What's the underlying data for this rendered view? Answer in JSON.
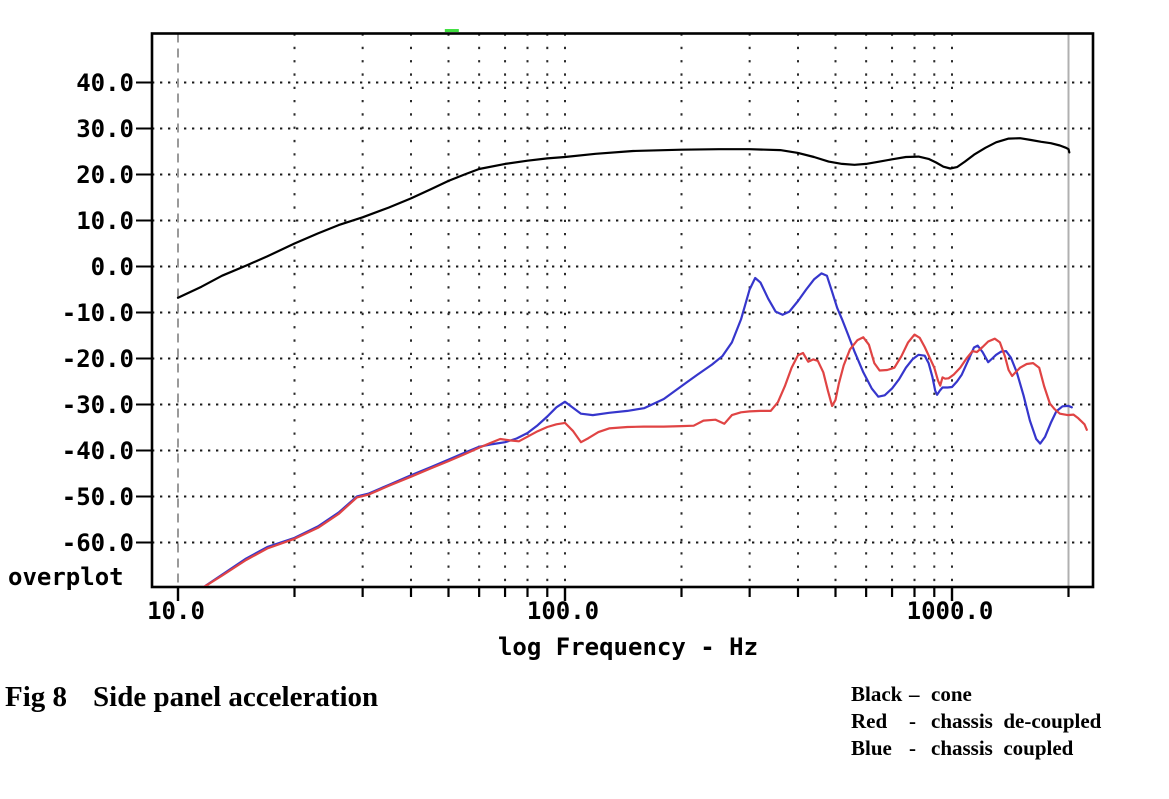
{
  "figure": {
    "fig_label": "Fig 8",
    "caption": "Side panel acceleration"
  },
  "legend": [
    {
      "color_name": "Black",
      "separator": "–",
      "description": "cone",
      "color": "#000000"
    },
    {
      "color_name": "Red",
      "separator": "-",
      "description": "chassis  de-coupled",
      "color": "#e04444"
    },
    {
      "color_name": "Blue",
      "separator": "-",
      "description": "chassis  coupled",
      "color": "#3636cc"
    }
  ],
  "chart_data": {
    "type": "line",
    "title": "",
    "xlabel": "log Frequency - Hz",
    "ylabel": "",
    "x_scale": "log",
    "xlim": [
      8.6,
      2320
    ],
    "ylim": [
      -70,
      50.8
    ],
    "corner_label": "overplot",
    "grid": "dotted",
    "y_ticks": [
      {
        "label": "40.0",
        "value": 40
      },
      {
        "label": "30.0",
        "value": 30
      },
      {
        "label": "20.0",
        "value": 20
      },
      {
        "label": "10.0",
        "value": 10
      },
      {
        "label": "0.0",
        "value": 0
      },
      {
        "label": "-10.0",
        "value": -10
      },
      {
        "label": "-20.0",
        "value": -20
      },
      {
        "label": "-30.0",
        "value": -30
      },
      {
        "label": "-40.0",
        "value": -40
      },
      {
        "label": "-50.0",
        "value": -50
      },
      {
        "label": "-60.0",
        "value": -60
      }
    ],
    "x_major_ticks": [
      {
        "label": "10.0",
        "value": 10
      },
      {
        "label": "100.0",
        "value": 100
      },
      {
        "label": "1000.0",
        "value": 1000
      }
    ],
    "x_minor_ticks": [
      20,
      30,
      40,
      50,
      60,
      70,
      80,
      90,
      200,
      300,
      400,
      500,
      600,
      700,
      800,
      900,
      2000
    ],
    "x_gridlines": [
      20,
      30,
      40,
      50,
      60,
      70,
      80,
      90,
      100,
      200,
      300,
      400,
      500,
      600,
      700,
      800,
      900,
      1000
    ],
    "reference_lines": [
      {
        "style": "dashed",
        "freq": 10,
        "color": "#9a9a9a"
      },
      {
        "style": "solid",
        "freq": 2000,
        "color": "#b0b0b0"
      }
    ],
    "cursor_marker": {
      "freq": 51,
      "db": 51.3,
      "color": "#3fdf3f"
    },
    "series": [
      {
        "name": "chassis coupled",
        "color": "#3636cc",
        "points": [
          [
            11.5,
            -70
          ],
          [
            13,
            -67
          ],
          [
            15,
            -63.5
          ],
          [
            17,
            -61
          ],
          [
            20,
            -59
          ],
          [
            23,
            -56.5
          ],
          [
            26,
            -53.5
          ],
          [
            29,
            -50
          ],
          [
            31,
            -49.4
          ],
          [
            35,
            -47.5
          ],
          [
            40,
            -45.4
          ],
          [
            45,
            -43.6
          ],
          [
            50,
            -42
          ],
          [
            55,
            -40.5
          ],
          [
            60,
            -39.2
          ],
          [
            65,
            -38.6
          ],
          [
            70,
            -38.2
          ],
          [
            75,
            -37.4
          ],
          [
            80,
            -36.2
          ],
          [
            85,
            -34.5
          ],
          [
            90,
            -32.6
          ],
          [
            95,
            -30.6
          ],
          [
            100,
            -29.4
          ],
          [
            104,
            -30.5
          ],
          [
            110,
            -32
          ],
          [
            118,
            -32.3
          ],
          [
            130,
            -31.8
          ],
          [
            145,
            -31.4
          ],
          [
            160,
            -30.8
          ],
          [
            180,
            -28.8
          ],
          [
            200,
            -26
          ],
          [
            220,
            -23.5
          ],
          [
            240,
            -21.3
          ],
          [
            255,
            -19.5
          ],
          [
            270,
            -16.5
          ],
          [
            285,
            -11.5
          ],
          [
            300,
            -5
          ],
          [
            310,
            -2.5
          ],
          [
            320,
            -3.5
          ],
          [
            335,
            -7
          ],
          [
            350,
            -9.8
          ],
          [
            365,
            -10.5
          ],
          [
            380,
            -9.8
          ],
          [
            400,
            -7.5
          ],
          [
            420,
            -5
          ],
          [
            440,
            -2.8
          ],
          [
            460,
            -1.5
          ],
          [
            475,
            -2
          ],
          [
            490,
            -5.5
          ],
          [
            505,
            -9
          ],
          [
            520,
            -11.5
          ],
          [
            540,
            -15
          ],
          [
            560,
            -18.5
          ],
          [
            590,
            -23
          ],
          [
            620,
            -26.5
          ],
          [
            645,
            -28.3
          ],
          [
            670,
            -28
          ],
          [
            700,
            -26.5
          ],
          [
            730,
            -24.5
          ],
          [
            760,
            -22
          ],
          [
            790,
            -20.2
          ],
          [
            820,
            -19.2
          ],
          [
            850,
            -19.4
          ],
          [
            870,
            -21
          ],
          [
            890,
            -24
          ],
          [
            905,
            -27
          ],
          [
            915,
            -27.9
          ],
          [
            930,
            -27
          ],
          [
            945,
            -26.3
          ],
          [
            975,
            -26.3
          ],
          [
            1000,
            -26.2
          ],
          [
            1030,
            -25
          ],
          [
            1060,
            -23.5
          ],
          [
            1100,
            -20.5
          ],
          [
            1140,
            -17.6
          ],
          [
            1165,
            -17.2
          ],
          [
            1200,
            -18.6
          ],
          [
            1240,
            -20.8
          ],
          [
            1270,
            -20
          ],
          [
            1300,
            -19.2
          ],
          [
            1340,
            -18.5
          ],
          [
            1380,
            -18.4
          ],
          [
            1420,
            -19.8
          ],
          [
            1470,
            -23
          ],
          [
            1530,
            -28
          ],
          [
            1590,
            -33.5
          ],
          [
            1650,
            -37.5
          ],
          [
            1690,
            -38.5
          ],
          [
            1740,
            -37
          ],
          [
            1800,
            -34
          ],
          [
            1860,
            -31.5
          ],
          [
            1930,
            -30.4
          ],
          [
            2000,
            -30.3
          ],
          [
            2040,
            -30.6
          ]
        ]
      },
      {
        "name": "chassis de-coupled",
        "color": "#e04444",
        "points": [
          [
            11.5,
            -70
          ],
          [
            13,
            -67.2
          ],
          [
            15,
            -63.8
          ],
          [
            17,
            -61.3
          ],
          [
            20,
            -59.2
          ],
          [
            23,
            -56.8
          ],
          [
            26,
            -53.8
          ],
          [
            29,
            -50.2
          ],
          [
            31,
            -49.6
          ],
          [
            35,
            -47.7
          ],
          [
            40,
            -45.7
          ],
          [
            45,
            -43.9
          ],
          [
            50,
            -42.3
          ],
          [
            55,
            -40.8
          ],
          [
            60,
            -39.4
          ],
          [
            64,
            -38.4
          ],
          [
            68,
            -37.5
          ],
          [
            72,
            -37.8
          ],
          [
            76,
            -38
          ],
          [
            80,
            -37
          ],
          [
            85,
            -35.8
          ],
          [
            90,
            -34.9
          ],
          [
            95,
            -34.3
          ],
          [
            100,
            -34
          ],
          [
            105,
            -35.8
          ],
          [
            110,
            -38.2
          ],
          [
            115,
            -37.3
          ],
          [
            122,
            -36
          ],
          [
            130,
            -35.2
          ],
          [
            145,
            -34.9
          ],
          [
            160,
            -34.8
          ],
          [
            180,
            -34.8
          ],
          [
            200,
            -34.7
          ],
          [
            215,
            -34.6
          ],
          [
            228,
            -33.5
          ],
          [
            245,
            -33.3
          ],
          [
            258,
            -34.2
          ],
          [
            270,
            -32.3
          ],
          [
            285,
            -31.7
          ],
          [
            300,
            -31.5
          ],
          [
            320,
            -31.4
          ],
          [
            340,
            -31.4
          ],
          [
            355,
            -29.5
          ],
          [
            370,
            -26
          ],
          [
            385,
            -22
          ],
          [
            400,
            -19.3
          ],
          [
            412,
            -18.8
          ],
          [
            425,
            -20.7
          ],
          [
            438,
            -20.2
          ],
          [
            450,
            -20.5
          ],
          [
            465,
            -23
          ],
          [
            478,
            -27
          ],
          [
            490,
            -30.3
          ],
          [
            500,
            -29
          ],
          [
            510,
            -25.5
          ],
          [
            525,
            -21.5
          ],
          [
            545,
            -18
          ],
          [
            570,
            -16
          ],
          [
            590,
            -15.4
          ],
          [
            610,
            -17
          ],
          [
            630,
            -21
          ],
          [
            650,
            -22.6
          ],
          [
            680,
            -22.5
          ],
          [
            710,
            -22
          ],
          [
            740,
            -19.5
          ],
          [
            770,
            -16.5
          ],
          [
            800,
            -14.8
          ],
          [
            825,
            -15.5
          ],
          [
            850,
            -17.5
          ],
          [
            875,
            -19.8
          ],
          [
            900,
            -22
          ],
          [
            920,
            -24.8
          ],
          [
            932,
            -25.9
          ],
          [
            945,
            -24.1
          ],
          [
            960,
            -24.4
          ],
          [
            980,
            -24.3
          ],
          [
            1010,
            -23.5
          ],
          [
            1050,
            -22
          ],
          [
            1090,
            -20
          ],
          [
            1130,
            -18.4
          ],
          [
            1160,
            -18.6
          ],
          [
            1200,
            -17.5
          ],
          [
            1240,
            -16.3
          ],
          [
            1290,
            -15.7
          ],
          [
            1330,
            -16.5
          ],
          [
            1370,
            -19.5
          ],
          [
            1400,
            -22.5
          ],
          [
            1430,
            -23.8
          ],
          [
            1460,
            -23
          ],
          [
            1500,
            -22
          ],
          [
            1560,
            -21.2
          ],
          [
            1620,
            -21
          ],
          [
            1680,
            -22
          ],
          [
            1730,
            -26
          ],
          [
            1790,
            -29.8
          ],
          [
            1840,
            -31
          ],
          [
            1900,
            -32
          ],
          [
            1990,
            -32.3
          ],
          [
            2060,
            -32.2
          ],
          [
            2120,
            -33
          ],
          [
            2200,
            -34.3
          ],
          [
            2230,
            -35.5
          ]
        ]
      },
      {
        "name": "cone",
        "color": "#000000",
        "points": [
          [
            10,
            -6.8
          ],
          [
            11.5,
            -4.4
          ],
          [
            13,
            -2
          ],
          [
            15,
            0.2
          ],
          [
            17,
            2.2
          ],
          [
            20,
            5
          ],
          [
            23,
            7.2
          ],
          [
            26,
            9
          ],
          [
            30,
            10.7
          ],
          [
            35,
            12.8
          ],
          [
            40,
            14.8
          ],
          [
            45,
            16.8
          ],
          [
            50,
            18.6
          ],
          [
            55,
            20
          ],
          [
            60,
            21.2
          ],
          [
            70,
            22.3
          ],
          [
            80,
            23
          ],
          [
            90,
            23.5
          ],
          [
            100,
            23.8
          ],
          [
            120,
            24.5
          ],
          [
            150,
            25.1
          ],
          [
            200,
            25.4
          ],
          [
            250,
            25.5
          ],
          [
            300,
            25.5
          ],
          [
            360,
            25.3
          ],
          [
            400,
            24.7
          ],
          [
            440,
            23.8
          ],
          [
            480,
            22.8
          ],
          [
            520,
            22.3
          ],
          [
            560,
            22.1
          ],
          [
            600,
            22.3
          ],
          [
            650,
            22.8
          ],
          [
            700,
            23.3
          ],
          [
            760,
            23.8
          ],
          [
            820,
            23.9
          ],
          [
            870,
            23.4
          ],
          [
            910,
            22.6
          ],
          [
            950,
            21.7
          ],
          [
            990,
            21.3
          ],
          [
            1030,
            21.6
          ],
          [
            1080,
            22.8
          ],
          [
            1140,
            24.3
          ],
          [
            1220,
            25.8
          ],
          [
            1300,
            27
          ],
          [
            1400,
            27.8
          ],
          [
            1500,
            27.9
          ],
          [
            1600,
            27.5
          ],
          [
            1700,
            27.1
          ],
          [
            1800,
            26.8
          ],
          [
            1900,
            26.3
          ],
          [
            1970,
            25.8
          ],
          [
            2000,
            25.5
          ],
          [
            2010,
            24.8
          ]
        ]
      }
    ]
  }
}
